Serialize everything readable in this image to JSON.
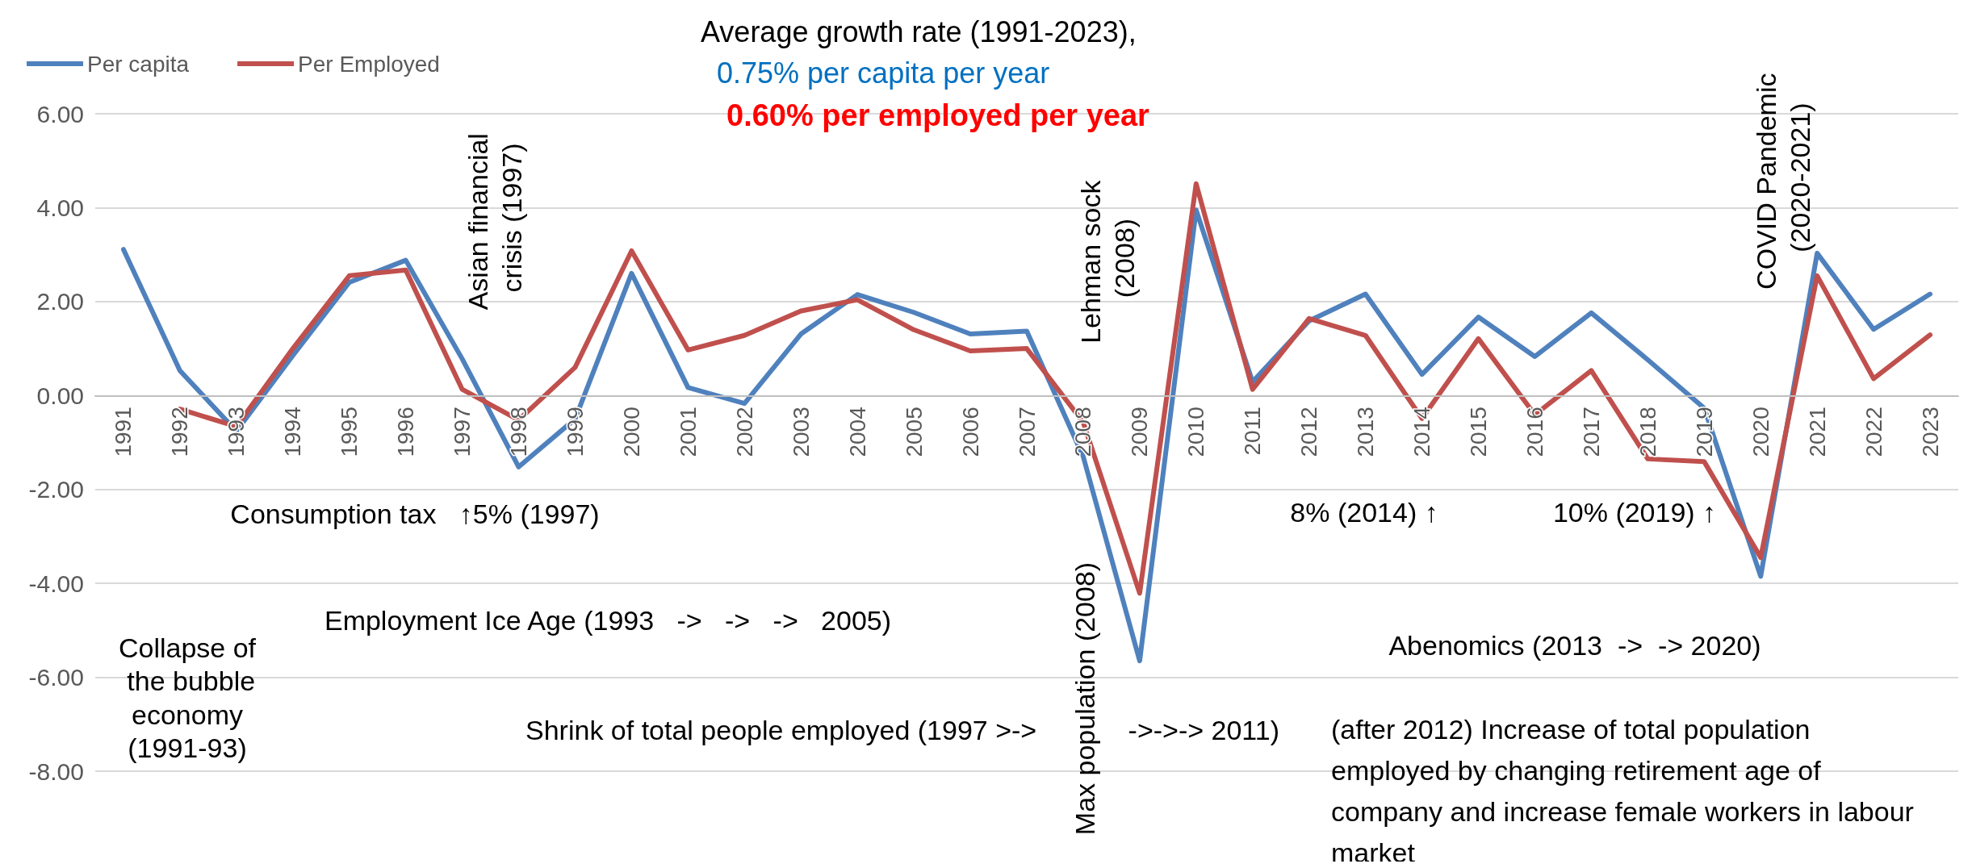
{
  "chart_data": {
    "type": "line",
    "title": "Average growth rate (1991-2023),",
    "subtitle": "0.75% per capita per year",
    "categories": [
      "1991",
      "1992",
      "1993",
      "1994",
      "1995",
      "1996",
      "1997",
      "1998",
      "1999",
      "2000",
      "2001",
      "2002",
      "2003",
      "2004",
      "2005",
      "2006",
      "2007",
      "2008",
      "2009",
      "2010",
      "2011",
      "2012",
      "2013",
      "2014",
      "2015",
      "2016",
      "2017",
      "2018",
      "2019",
      "2020",
      "2021",
      "2022",
      "2023"
    ],
    "series": [
      {
        "name": "Per capita",
        "color": "#4f81bd",
        "values": [
          3.11,
          0.53,
          -0.76,
          0.85,
          2.41,
          2.88,
          0.78,
          -1.52,
          -0.5,
          2.6,
          0.17,
          -0.17,
          1.31,
          2.15,
          1.77,
          1.31,
          1.37,
          -1.3,
          -5.65,
          3.95,
          0.29,
          1.59,
          2.16,
          0.45,
          1.67,
          0.83,
          1.76,
          0.76,
          -0.27,
          -3.85,
          3.03,
          1.41,
          2.16
        ]
      },
      {
        "name": "Per Employed",
        "color": "#c0504d",
        "values": [
          null,
          -0.29,
          -0.66,
          1.0,
          2.55,
          2.67,
          0.13,
          -0.52,
          0.6,
          3.08,
          0.97,
          1.28,
          1.8,
          2.04,
          1.4,
          0.95,
          1.0,
          -0.57,
          -4.21,
          4.51,
          0.13,
          1.64,
          1.28,
          -0.49,
          1.21,
          -0.41,
          0.53,
          -1.35,
          -1.41,
          -3.45,
          2.55,
          0.36,
          1.29
        ]
      }
    ],
    "ylim": [
      -8,
      6
    ],
    "yticks": [
      {
        "value": -8,
        "label": "-8.00"
      },
      {
        "value": -6,
        "label": "-6.00"
      },
      {
        "value": -4,
        "label": "-4.00"
      },
      {
        "value": -2,
        "label": "-2.00"
      },
      {
        "value": 0,
        "label": "0.00"
      },
      {
        "value": 2,
        "label": "2.00"
      },
      {
        "value": 4,
        "label": "4.00"
      },
      {
        "value": 6,
        "label": "6.00"
      }
    ],
    "grid": "y",
    "legend": "top left",
    "marker": "none",
    "line_style": "solid",
    "annotations": [
      "0.60% per employed per year",
      "Asian financial crisis (1997)",
      "Consumption tax   ↑5% (1997)",
      "Collapse of the bubble economy (1991-93)",
      "Employment Ice Age (1993   ->   ->   ->   2005)",
      "Shrink of total people employed (1997 >->            ->->-> 2011)",
      "Lehman sock (2008)",
      "Max population (2008)",
      "8% (2014) ↑",
      "10% (2019) ↑",
      "Abenomics (2013  ->  -> 2020)",
      "(after 2012) Increase of total population employed by changing retirement age of company and increase female workers in labour market",
      "COVID Pandemic (2020-2021)"
    ]
  }
}
